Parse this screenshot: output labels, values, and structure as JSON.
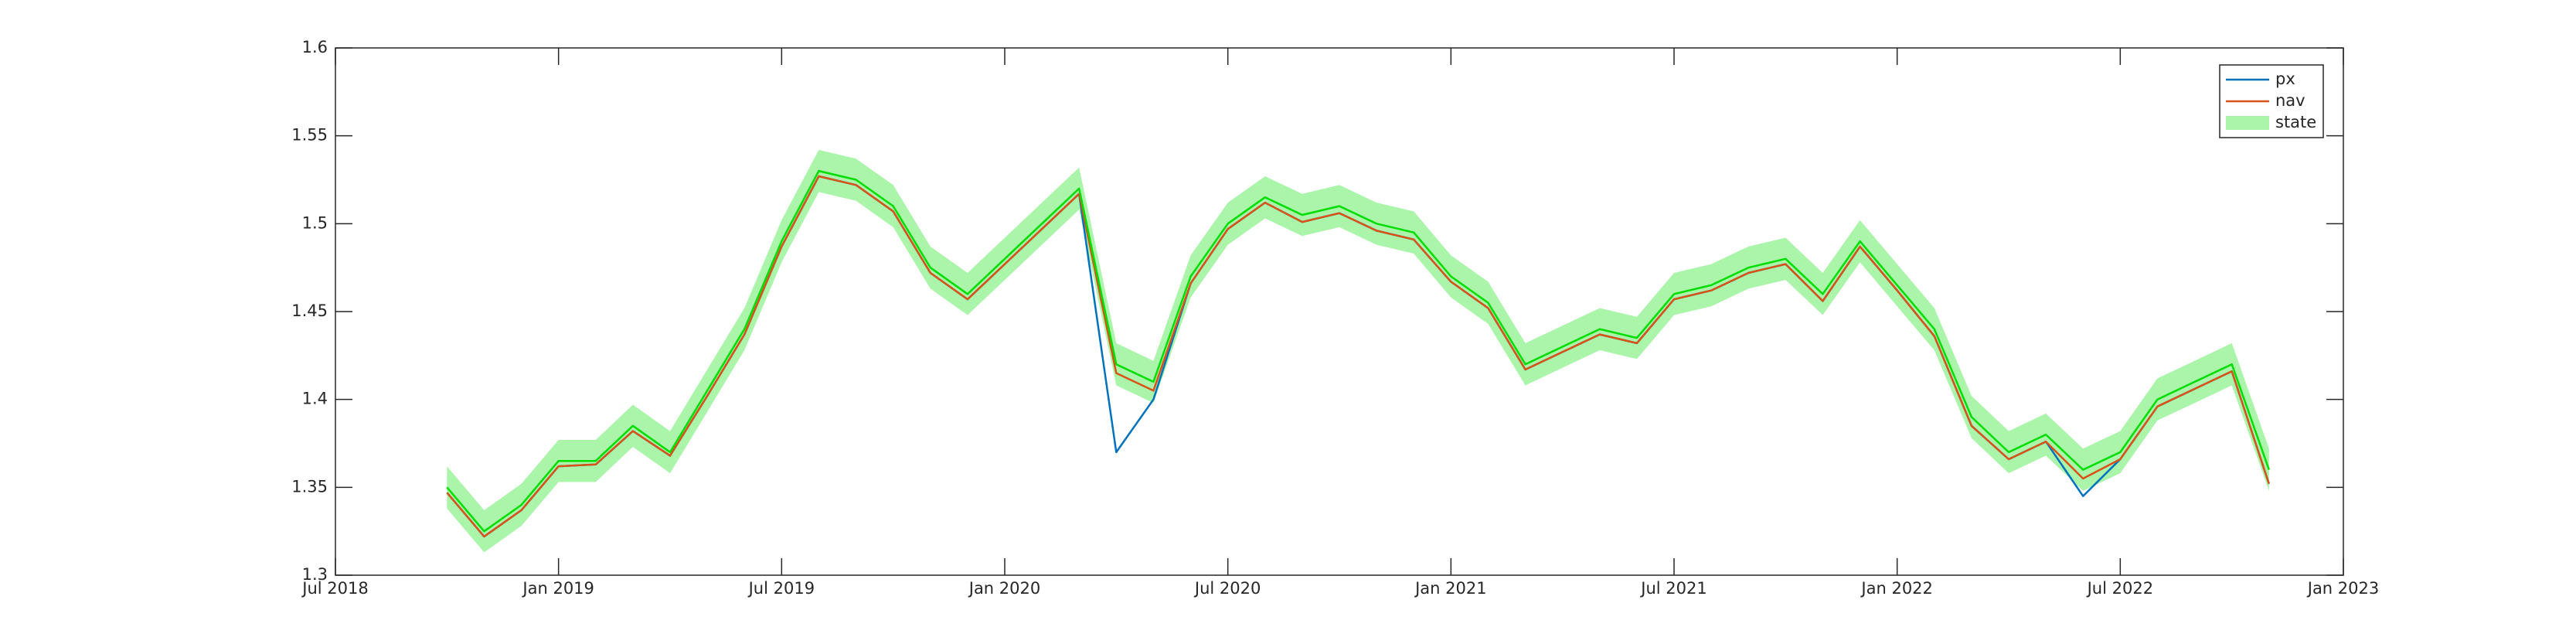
{
  "chart_data": {
    "type": "line",
    "x": [
      "2018-10",
      "2018-11",
      "2018-12",
      "2019-01",
      "2019-02",
      "2019-03",
      "2019-04",
      "2019-05",
      "2019-06",
      "2019-07",
      "2019-08",
      "2019-09",
      "2019-10",
      "2019-11",
      "2019-12",
      "2020-01",
      "2020-02",
      "2020-03",
      "2020-04",
      "2020-05",
      "2020-06",
      "2020-07",
      "2020-08",
      "2020-09",
      "2020-10",
      "2020-11",
      "2020-12",
      "2021-01",
      "2021-02",
      "2021-03",
      "2021-04",
      "2021-05",
      "2021-06",
      "2021-07",
      "2021-08",
      "2021-09",
      "2021-10",
      "2021-11",
      "2021-12",
      "2022-01",
      "2022-02",
      "2022-03",
      "2022-04",
      "2022-05",
      "2022-06",
      "2022-07",
      "2022-08",
      "2022-09",
      "2022-10",
      "2022-11"
    ],
    "series": [
      {
        "name": "px",
        "color": "#0072bd",
        "values": [
          1.347,
          1.322,
          1.337,
          1.362,
          1.363,
          1.382,
          1.368,
          1.402,
          1.437,
          1.487,
          1.527,
          1.522,
          1.507,
          1.472,
          1.457,
          1.477,
          1.497,
          1.517,
          1.37,
          1.4,
          1.466,
          1.497,
          1.512,
          1.501,
          1.506,
          1.496,
          1.491,
          1.467,
          1.452,
          1.417,
          1.427,
          1.437,
          1.432,
          1.457,
          1.462,
          1.472,
          1.477,
          1.456,
          1.487,
          1.462,
          1.436,
          1.385,
          1.366,
          1.376,
          1.345,
          1.366,
          1.396,
          1.406,
          1.416,
          1.352
        ]
      },
      {
        "name": "nav",
        "color": "#d95319",
        "values": [
          1.347,
          1.322,
          1.337,
          1.362,
          1.363,
          1.382,
          1.368,
          1.402,
          1.437,
          1.487,
          1.527,
          1.522,
          1.507,
          1.472,
          1.457,
          1.477,
          1.497,
          1.517,
          1.415,
          1.405,
          1.466,
          1.497,
          1.512,
          1.501,
          1.506,
          1.496,
          1.491,
          1.467,
          1.452,
          1.417,
          1.427,
          1.437,
          1.432,
          1.457,
          1.462,
          1.472,
          1.477,
          1.456,
          1.487,
          1.462,
          1.436,
          1.385,
          1.366,
          1.376,
          1.355,
          1.366,
          1.396,
          1.406,
          1.416,
          1.352
        ]
      },
      {
        "name": "state",
        "color": "#00dd00",
        "band_color": "#aaf5aa",
        "values": [
          1.35,
          1.325,
          1.34,
          1.365,
          1.365,
          1.385,
          1.37,
          1.405,
          1.44,
          1.49,
          1.53,
          1.525,
          1.51,
          1.475,
          1.46,
          1.48,
          1.5,
          1.52,
          1.42,
          1.41,
          1.47,
          1.5,
          1.515,
          1.505,
          1.51,
          1.5,
          1.495,
          1.47,
          1.455,
          1.42,
          1.43,
          1.44,
          1.435,
          1.46,
          1.465,
          1.475,
          1.48,
          1.46,
          1.49,
          1.465,
          1.44,
          1.39,
          1.37,
          1.38,
          1.36,
          1.37,
          1.4,
          1.41,
          1.42,
          1.36
        ],
        "upper": [
          1.362,
          1.337,
          1.352,
          1.377,
          1.377,
          1.397,
          1.382,
          1.417,
          1.452,
          1.502,
          1.542,
          1.537,
          1.522,
          1.487,
          1.472,
          1.492,
          1.512,
          1.532,
          1.432,
          1.422,
          1.482,
          1.512,
          1.527,
          1.517,
          1.522,
          1.512,
          1.507,
          1.482,
          1.467,
          1.432,
          1.442,
          1.452,
          1.447,
          1.472,
          1.477,
          1.487,
          1.492,
          1.472,
          1.502,
          1.477,
          1.452,
          1.402,
          1.382,
          1.392,
          1.372,
          1.382,
          1.412,
          1.422,
          1.432,
          1.372
        ],
        "lower": [
          1.338,
          1.313,
          1.328,
          1.353,
          1.353,
          1.373,
          1.358,
          1.393,
          1.428,
          1.478,
          1.518,
          1.513,
          1.498,
          1.463,
          1.448,
          1.468,
          1.488,
          1.508,
          1.408,
          1.398,
          1.458,
          1.488,
          1.503,
          1.493,
          1.498,
          1.488,
          1.483,
          1.458,
          1.443,
          1.408,
          1.418,
          1.428,
          1.423,
          1.448,
          1.453,
          1.463,
          1.468,
          1.448,
          1.478,
          1.453,
          1.428,
          1.378,
          1.358,
          1.368,
          1.348,
          1.358,
          1.388,
          1.398,
          1.408,
          1.348
        ]
      }
    ],
    "xlim": [
      "2018-07",
      "2023-01"
    ],
    "xticks": [
      {
        "value": "2018-07",
        "label": "Jul 2018"
      },
      {
        "value": "2019-01",
        "label": "Jan 2019"
      },
      {
        "value": "2019-07",
        "label": "Jul 2019"
      },
      {
        "value": "2020-01",
        "label": "Jan 2020"
      },
      {
        "value": "2020-07",
        "label": "Jul 2020"
      },
      {
        "value": "2021-01",
        "label": "Jan 2021"
      },
      {
        "value": "2021-07",
        "label": "Jul 2021"
      },
      {
        "value": "2022-01",
        "label": "Jan 2022"
      },
      {
        "value": "2022-07",
        "label": "Jul 2022"
      },
      {
        "value": "2023-01",
        "label": "Jan 2023"
      }
    ],
    "ylim": [
      1.3,
      1.6
    ],
    "yticks": [
      1.3,
      1.35,
      1.4,
      1.45,
      1.5,
      1.55,
      1.6
    ],
    "legend": "northeast"
  }
}
